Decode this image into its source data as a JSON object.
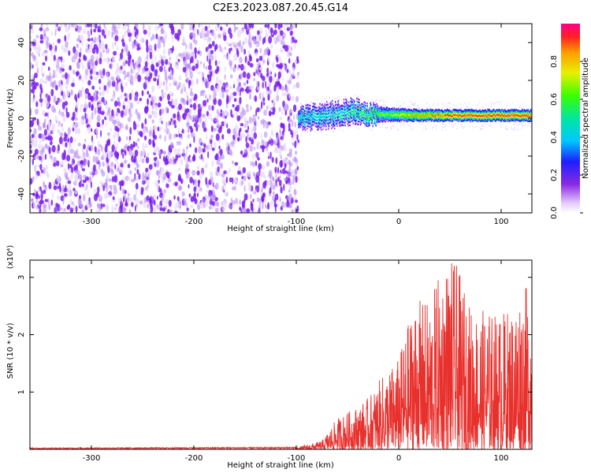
{
  "title": "C2E3.2023.087.20.45.G14",
  "colors": {
    "snr_line": "#e8302c",
    "speckle": "#7a1ff0",
    "axes": "#000000"
  },
  "chart_data": [
    {
      "type": "heatmap",
      "name": "spectrogram",
      "xlabel": "Height of straight line (km)",
      "ylabel": "Frequency (Hz)",
      "xlim": [
        -360,
        130
      ],
      "ylim": [
        -50,
        50
      ],
      "x_ticks": [
        -300,
        -200,
        -100,
        0,
        100
      ],
      "y_ticks": [
        -40,
        -20,
        0,
        20,
        40
      ],
      "noise_region": {
        "x_from": -360,
        "x_to": -98,
        "description_level": 0.2
      },
      "signal_band": [
        {
          "x": -98,
          "center": 0,
          "width": 8,
          "peak": 0.45
        },
        {
          "x": -80,
          "center": 1,
          "width": 10,
          "peak": 0.45
        },
        {
          "x": -60,
          "center": 2,
          "width": 10,
          "peak": 0.45
        },
        {
          "x": -45,
          "center": 4,
          "width": 10,
          "peak": 0.5
        },
        {
          "x": -30,
          "center": 2,
          "width": 8,
          "peak": 0.55
        },
        {
          "x": -10,
          "center": 2,
          "width": 6,
          "peak": 0.6
        },
        {
          "x": 20,
          "center": 1.5,
          "width": 5,
          "peak": 0.8
        },
        {
          "x": 60,
          "center": 1.5,
          "width": 5,
          "peak": 0.9
        },
        {
          "x": 100,
          "center": 1.5,
          "width": 5,
          "peak": 0.9
        },
        {
          "x": 130,
          "center": 1.5,
          "width": 5,
          "peak": 0.9
        }
      ],
      "colorbar": {
        "label": "Normalized spectral amplitude",
        "range": [
          0,
          1
        ],
        "ticks": [
          "0.0",
          "0.2",
          "0.4",
          "0.6",
          "0.8"
        ]
      }
    },
    {
      "type": "line",
      "name": "snr",
      "xlabel": "Height of straight line (km)",
      "ylabel": "SNR (10 * v/v)",
      "multiplier": "(x10⁴)",
      "xlim": [
        -360,
        130
      ],
      "ylim": [
        0,
        3.3
      ],
      "x_ticks": [
        -300,
        -200,
        -100,
        0,
        100
      ],
      "y_ticks": [
        1,
        2,
        3
      ],
      "envelope": [
        {
          "x": -360,
          "y": 0.02
        },
        {
          "x": -100,
          "y": 0.03
        },
        {
          "x": -75,
          "y": 0.15
        },
        {
          "x": -60,
          "y": 0.55
        },
        {
          "x": -45,
          "y": 0.7
        },
        {
          "x": -30,
          "y": 0.9
        },
        {
          "x": -15,
          "y": 1.3
        },
        {
          "x": 0,
          "y": 1.6
        },
        {
          "x": 15,
          "y": 2.6
        },
        {
          "x": 30,
          "y": 2.6
        },
        {
          "x": 45,
          "y": 3.3
        },
        {
          "x": 55,
          "y": 3.3
        },
        {
          "x": 70,
          "y": 2.5
        },
        {
          "x": 90,
          "y": 2.4
        },
        {
          "x": 100,
          "y": 2.4
        },
        {
          "x": 110,
          "y": 2.5
        },
        {
          "x": 122,
          "y": 2.95
        },
        {
          "x": 130,
          "y": 2.6
        }
      ]
    }
  ]
}
